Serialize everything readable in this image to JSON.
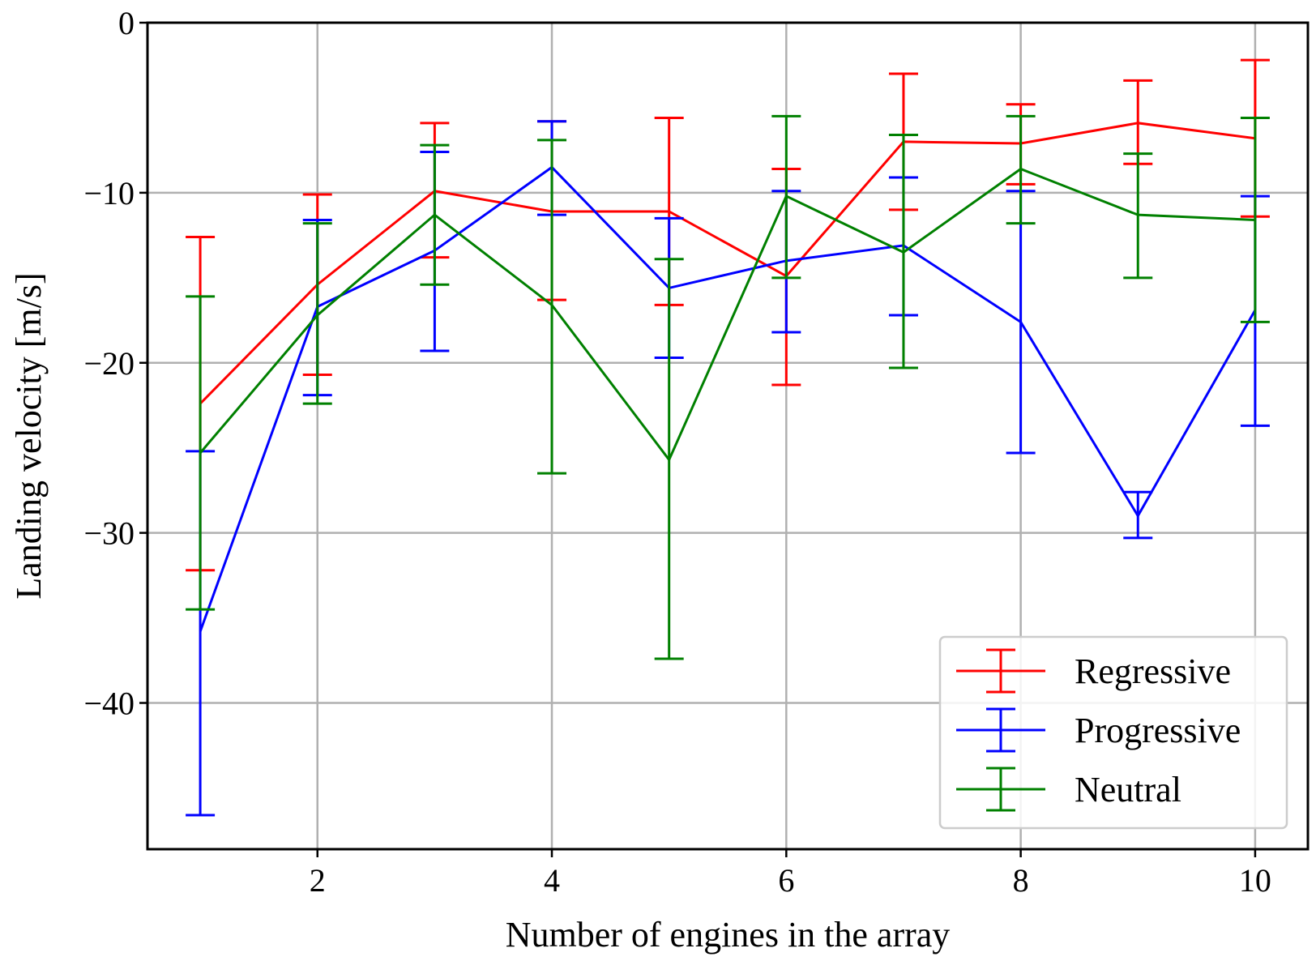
{
  "chart_data": {
    "type": "line",
    "title": "",
    "xlabel": "Number of engines in the array",
    "ylabel": "Landing velocity [m/s]",
    "xlim": [
      0.55,
      10.45
    ],
    "ylim": [
      -48.6,
      0
    ],
    "xticks": [
      2,
      4,
      6,
      8,
      10
    ],
    "xtick_labels": [
      "2",
      "4",
      "6",
      "8",
      "10"
    ],
    "yticks": [
      0,
      -10,
      -20,
      -30,
      -40
    ],
    "ytick_labels": [
      "0",
      "−10",
      "−20",
      "−30",
      "−40"
    ],
    "grid": true,
    "legend_position": "lower-right",
    "x": [
      1,
      2,
      3,
      4,
      5,
      6,
      7,
      8,
      9,
      10
    ],
    "series": [
      {
        "name": "Regressive",
        "color": "#ff0000",
        "values": [
          -22.4,
          -15.4,
          -9.9,
          -11.1,
          -11.1,
          -14.9,
          -7.0,
          -7.1,
          -5.9,
          -6.8
        ],
        "err_low": [
          -32.2,
          -20.7,
          -13.8,
          -16.3,
          -16.6,
          -21.3,
          -11.0,
          -9.5,
          -8.3,
          -11.4
        ],
        "err_high": [
          -12.6,
          -10.1,
          -5.9,
          -5.8,
          -5.6,
          -8.6,
          -3.0,
          -4.8,
          -3.4,
          -2.2
        ]
      },
      {
        "name": "Progressive",
        "color": "#0000ff",
        "values": [
          -35.8,
          -16.7,
          -13.4,
          -8.5,
          -15.6,
          -14.0,
          -13.1,
          -17.6,
          -29.0,
          -16.9
        ],
        "err_low": [
          -46.6,
          -21.9,
          -19.3,
          -11.3,
          -19.7,
          -18.2,
          -17.2,
          -25.3,
          -30.3,
          -23.7
        ],
        "err_high": [
          -25.2,
          -11.6,
          -7.6,
          -5.8,
          -11.5,
          -9.9,
          -9.1,
          -9.9,
          -27.6,
          -10.2
        ]
      },
      {
        "name": "Neutral",
        "color": "#008000",
        "values": [
          -25.3,
          -17.2,
          -11.3,
          -16.6,
          -25.7,
          -10.2,
          -13.5,
          -8.6,
          -11.3,
          -11.6
        ],
        "err_low": [
          -34.5,
          -22.4,
          -15.4,
          -26.5,
          -37.4,
          -15.0,
          -20.3,
          -11.8,
          -15.0,
          -17.6
        ],
        "err_high": [
          -16.1,
          -11.8,
          -7.2,
          -6.9,
          -13.9,
          -5.5,
          -6.6,
          -5.5,
          -7.7,
          -5.6
        ]
      }
    ]
  }
}
